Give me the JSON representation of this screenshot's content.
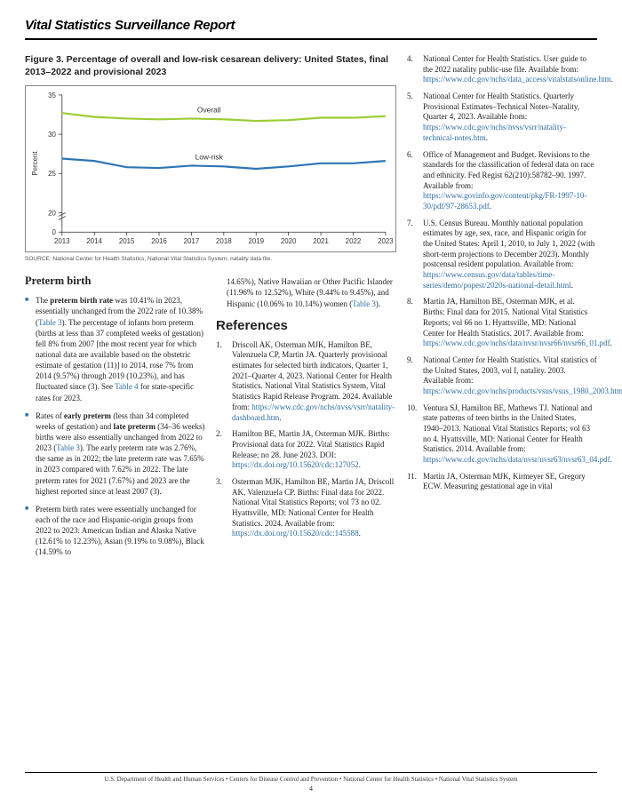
{
  "header": {
    "title": "Vital Statistics Surveillance Report"
  },
  "figure": {
    "title": "Figure 3. Percentage of overall and low-risk cesarean delivery: United States, final 2013–2022 and provisional 2023",
    "source": "SOURCE: National Center for Health Statistics, National Vital Statistics System, natality data file.",
    "chart": {
      "type": "line",
      "categories": [
        "2013",
        "2014",
        "2015",
        "2016",
        "2017",
        "2018",
        "2019",
        "2020",
        "2021",
        "2022",
        "2023"
      ],
      "series": [
        {
          "name": "Overall",
          "color": "#9acd32",
          "values": [
            32.7,
            32.2,
            32.0,
            31.9,
            32.0,
            31.9,
            31.7,
            31.8,
            32.1,
            32.1,
            32.3
          ]
        },
        {
          "name": "Low-risk",
          "color": "#2e75b6",
          "values": [
            26.9,
            26.6,
            25.8,
            25.7,
            26.0,
            25.9,
            25.6,
            25.9,
            26.3,
            26.3,
            26.6
          ]
        }
      ],
      "ylabel": "Percent",
      "yticks": [
        0,
        20,
        25,
        30,
        35
      ],
      "break_between": [
        0,
        20
      ],
      "label_fontsize": 8,
      "tick_fontsize": 8,
      "line_width": 2.2,
      "background_color": "#ffffff",
      "axis_color": "#333333",
      "tick_color": "#333333"
    }
  },
  "preterm": {
    "heading": "Preterm birth",
    "bullets": [
      "The <b>preterm birth rate</b> was 10.41% in 2023, essentially unchanged from the 2022 rate of 10.38% (<span class='link'>Table 3</span>). The percentage of infants born preterm (births at less than 37 completed weeks of gestation) fell 8% from 2007 [the most recent year for which national data are available based on the obstetric estimate of gestation (11)] to 2014, rose 7% from 2014 (9.57%) through 2019 (10.23%), and has fluctuated since (3). See <span class='link'>Table 4</span> for state-specific rates for 2023.",
      "Rates of <b>early preterm</b> (less than 34 completed weeks of gestation) and <b>late preterm</b> (34–36 weeks) births were also essentially unchanged from 2022 to 2023 (<span class='link'>Table 3</span>). The early preterm rate was 2.76%, the same as in 2022; the late preterm rate was 7.65% in 2023 compared with 7.62% in 2022. The late preterm rates for 2021 (7.67%) and 2023 are the highest reported since at least  2007 (3).",
      "Preterm birth rates were essentially unchanged for each of the race and Hispanic-origin groups from 2022 to 2023: American Indian and Alaska Native (12.61% to 12.23%), Asian (9.19% to 9.08%), Black (14.59% to"
    ],
    "col2top": "14.65%), Native Hawaiian or Other Pacific Islander (11.96% to 12.52%), White (9.44% to 9.45%), and Hispanic (10.06% to 10.14%) women (<span class='link'>Table 3</span>)."
  },
  "references": {
    "heading": "References",
    "left": [
      "Driscoll AK, Osterman MJK, Hamilton BE, Valenzuela CP, Martin JA. Quarterly provisional estimates for selected birth indicators, Quarter 1, 2021–Quarter 4, 2023. National Center for Health Statistics. National Vital Statistics System, Vital Statistics Rapid Release Program. 2024. Available from: <span class='link'>https://www.cdc.gov/nchs/nvss/vsrr/natality-dashboard.htm</span>.",
      "Hamilton BE, Martin JA, Osterman MJK. Births: Provisional data for 2022. Vital Statistics Rapid Release; no 28. June 2023. DOI: <span class='link'>https://dx.doi.org/10.15620/cdc:127052</span>.",
      "Osterman MJK, Hamilton BE, Martin JA, Driscoll AK, Valenzuela CP. Births: Final data for 2022. National Vital Statistics Reports; vol 73 no 02. Hyattsville, MD: National Center for Health Statistics. 2024. Available from: <span class='link'>https://dx.doi.org/10.15620/cdc:145588</span>."
    ],
    "right_start": 4,
    "right": [
      "National Center for Health Statistics. User guide to the 2022 natality public-use file. Available from: <span class='link'>https://www.cdc.gov/nchs/data_access/vitalstatsonline.htm</span>.",
      "National Center for Health Statistics. Quarterly Provisional Estimates–Technical Notes–Natality, Quarter 4, 2023. Available from: <span class='link'>https://www.cdc.gov/nchs/nvss/vsrr/natality-technical-notes.htm</span>.",
      "Office of Management and Budget. Revisions to the standards for the classification of federal data on race and ethnicity. Fed Regist 62(210):58782–90. 1997. Available from: <span class='link'>https://www.govinfo.gov/content/pkg/FR-1997-10-30/pdf/97-28653.pdf</span>.",
      "U.S. Census Bureau. Monthly national population estimates by age, sex, race, and Hispanic origin for the United States: April 1, 2010, to July 1, 2022 (with short-term projections to December 2023). Monthly postcensal resident population. Available from: <span class='link'>https://www.census.gov/data/tables/time-series/demo/popest/2020s-national-detail.html</span>.",
      "Martin JA, Hamilton BE, Osterman MJK, et al. Births: Final data for 2015. National Vital Statistics Reports; vol 66 no 1. Hyattsville, MD: National Center for Health Statistics. 2017. Available from: <span class='link'>https://www.cdc.gov/nchs/data/nvsr/nvsr66/nvsr66_01.pdf</span>.",
      "National Center for Health Statistics. Vital statistics of the United States, 2003, vol I, natality. 2003. Available from: <span class='link'>https://www.cdc.gov/nchs/products/vsus/vsus_1980_2003.htm</span>.",
      "Ventura SJ, Hamilton BE, Mathews TJ. National and state patterns of teen births in the United States, 1940–2013. National Vital Statistics Reports; vol 63 no 4. Hyattsville, MD: National Center for Health Statistics. 2014. Available from: <span class='link'>https://www.cdc.gov/nchs/data/nvsr/nvsr63/nvsr63_04.pdf</span>.",
      "Martin JA, Osterman MJK, Kirmeyer SE, Gregory ECW. Measuring gestational age in vital"
    ]
  },
  "footer": {
    "text": "U.S. Department of Health and Human Services • Centers for Disease Control and Prevention • National Center for Health Statistics • National Vital Statistics System",
    "page": "4"
  }
}
